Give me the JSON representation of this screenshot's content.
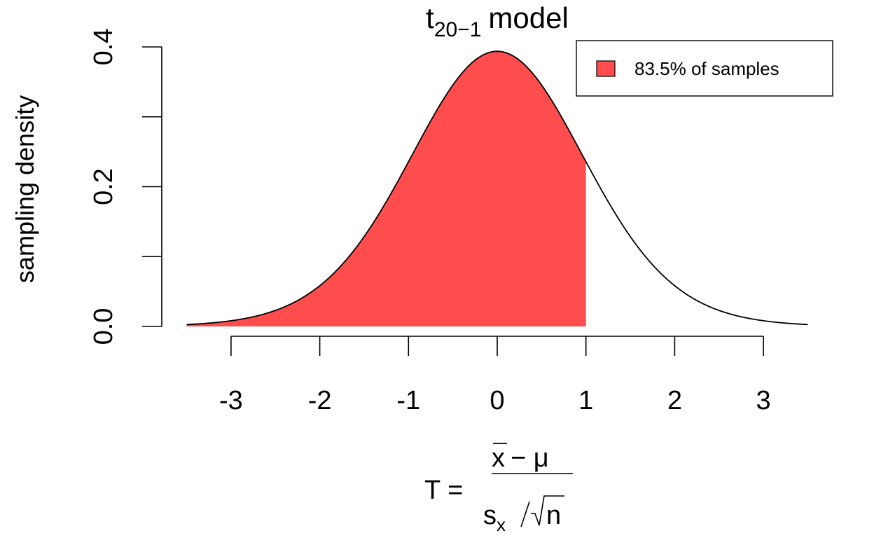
{
  "chart_data": {
    "type": "area",
    "title_base": "t",
    "title_subscript": "20−1",
    "title_suffix": "model",
    "ylabel": "sampling density",
    "xlabel": {
      "lhs": "T =",
      "numerator_bar_symbol": "x",
      "numerator_rest": "− μ",
      "denominator_s": "s",
      "denominator_sub": "x",
      "denominator_sqrt_arg": "n"
    },
    "degrees_of_freedom": 19,
    "xlim": [
      -3.5,
      3.5
    ],
    "ylim": [
      0,
      0.4
    ],
    "x_ticks": [
      -3,
      -2,
      -1,
      0,
      1,
      2,
      3
    ],
    "x_tick_labels": [
      "-3",
      "-2",
      "-1",
      "0",
      "1",
      "2",
      "3"
    ],
    "y_ticks": [
      0.0,
      0.1,
      0.2,
      0.3,
      0.4
    ],
    "y_tick_labels": [
      "0.0",
      "",
      "0.2",
      "",
      "0.4"
    ],
    "shaded_region": {
      "from": -3.5,
      "to": 1.0,
      "color": "#FF4D4D"
    },
    "curve_color": "#000000",
    "legend": {
      "position": "top-right",
      "entries": [
        {
          "label": "83.5% of samples",
          "color": "#FF4D4D"
        }
      ]
    }
  }
}
